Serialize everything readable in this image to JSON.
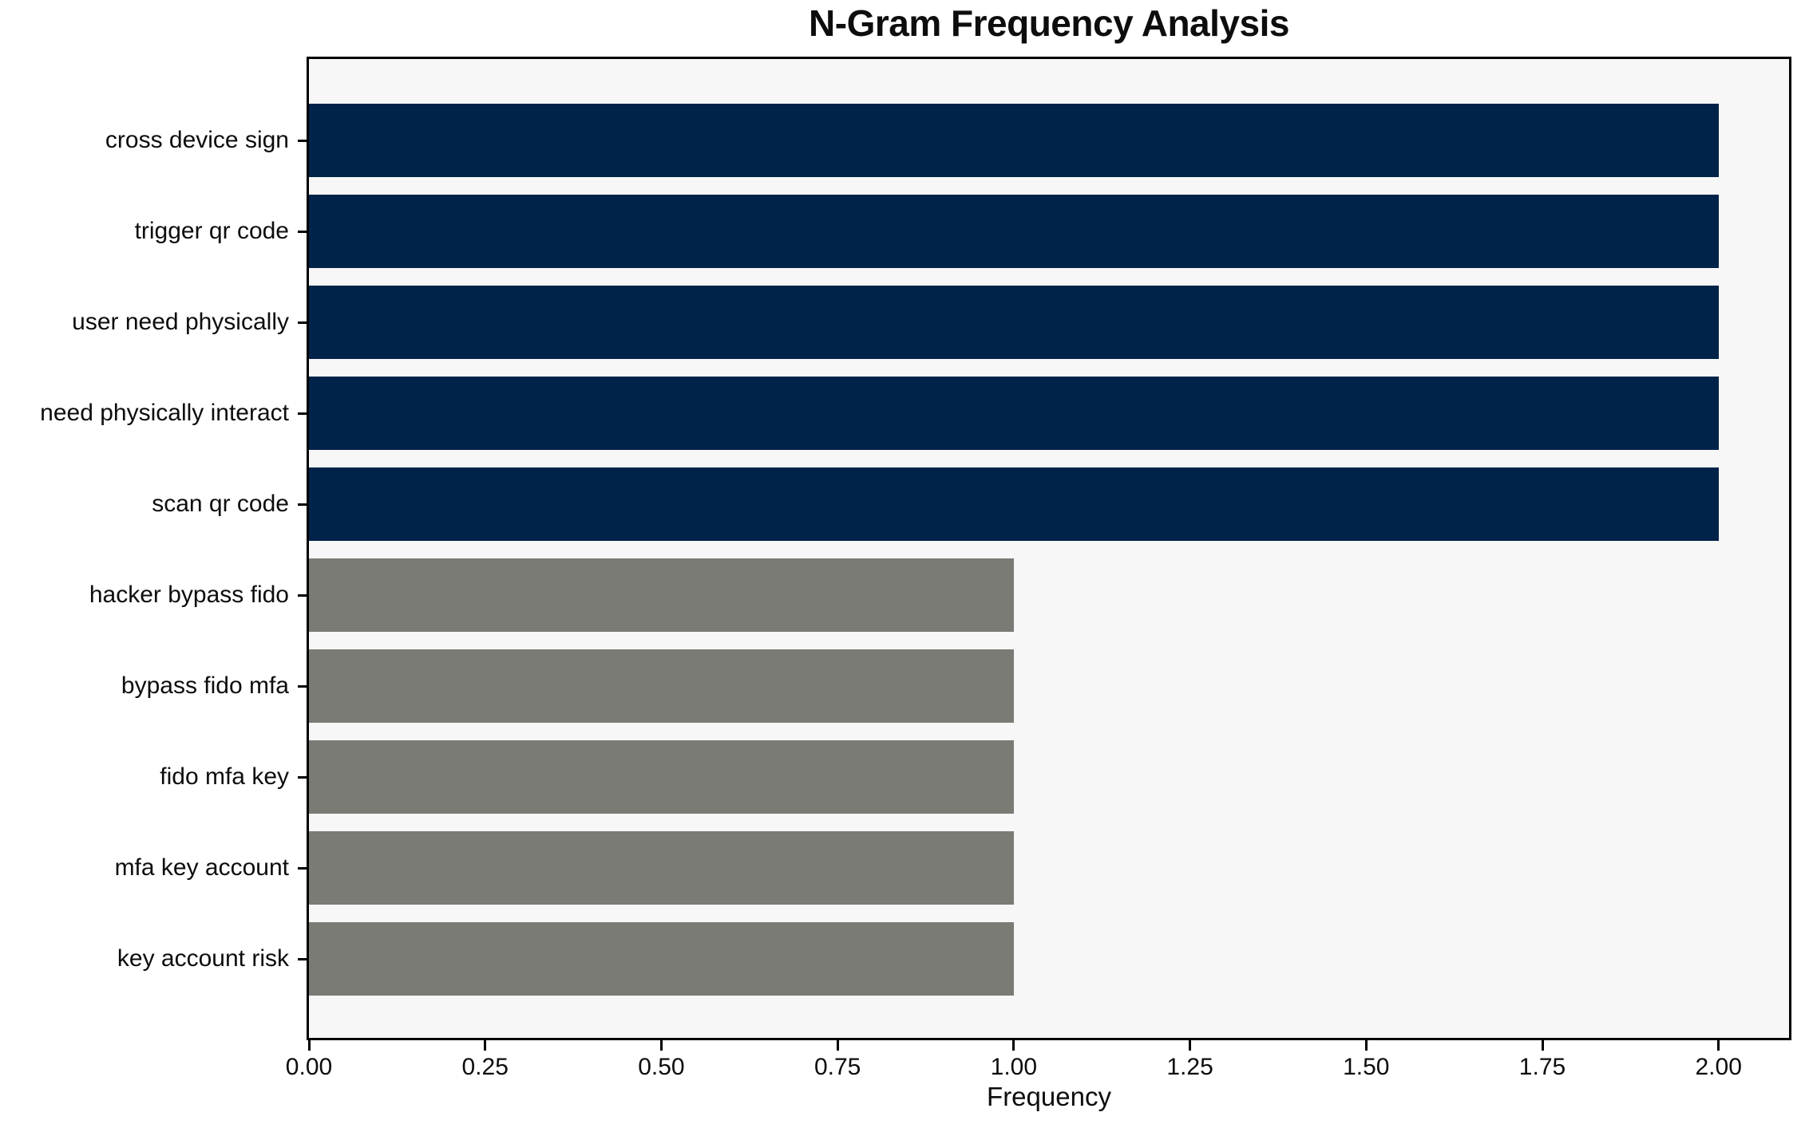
{
  "chart_data": {
    "type": "bar",
    "orientation": "horizontal",
    "title": "N-Gram Frequency Analysis",
    "xlabel": "Frequency",
    "ylabel": "",
    "categories": [
      "cross device sign",
      "trigger qr code",
      "user need physically",
      "need physically interact",
      "scan qr code",
      "hacker bypass fido",
      "bypass fido mfa",
      "fido mfa key",
      "mfa key account",
      "key account risk"
    ],
    "values": [
      2,
      2,
      2,
      2,
      2,
      1,
      1,
      1,
      1,
      1
    ],
    "bar_colors": [
      "#022349",
      "#022349",
      "#022349",
      "#022349",
      "#022349",
      "#7b7b76",
      "#7b7b76",
      "#7b7b76",
      "#7b7b76",
      "#7b7b76"
    ],
    "xlim": [
      0,
      2.1
    ],
    "xticks": [
      0,
      0.25,
      0.5,
      0.75,
      1,
      1.25,
      1.5,
      1.75,
      2
    ],
    "xtick_labels": [
      "0.00",
      "0.25",
      "0.50",
      "0.75",
      "1.00",
      "1.25",
      "1.50",
      "1.75",
      "2.00"
    ],
    "grid": false,
    "legend": null,
    "colors": {
      "primary_bar": "#022349",
      "secondary_bar": "#7b7b76",
      "plot_background": "#f7f7f7",
      "figure_background": "#ffffff",
      "axis": "#000000"
    }
  }
}
